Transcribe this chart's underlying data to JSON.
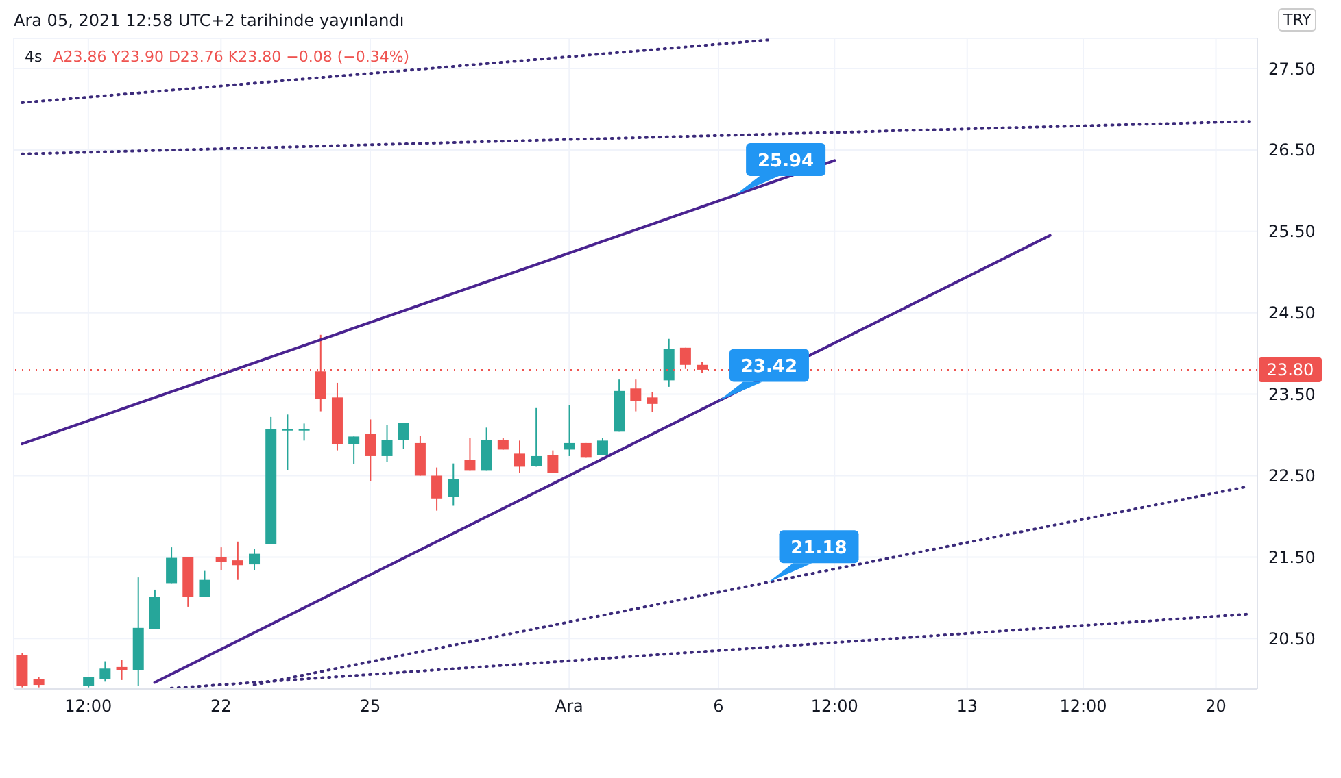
{
  "chart_data": {
    "type": "candlestick",
    "title": "Ara 05, 2021 12:58 UTC+2 tarihinde yayınlandı",
    "subtitle": "4s",
    "annotations": [
      "A23.86 Y23.90 D23.76 K23.80 −0.08 (−0.34%)",
      "TRY",
      "25.94",
      "23.42",
      "21.18"
    ],
    "categories": [
      null,
      null,
      null,
      null,
      "12:00",
      null,
      null,
      null,
      null,
      null,
      null,
      null,
      "22",
      null,
      null,
      null,
      null,
      null,
      null,
      null,
      null,
      "25",
      null,
      null,
      null,
      null,
      null,
      null,
      null,
      null,
      null,
      null,
      null,
      "Ara",
      null,
      null,
      null,
      null,
      null,
      null,
      null,
      null,
      "6",
      null,
      null,
      null,
      null,
      null,
      null,
      "12:00",
      null,
      null,
      null,
      null,
      null,
      null,
      null,
      "13",
      null,
      null,
      null,
      null,
      null,
      null,
      "12:00",
      null,
      null,
      null,
      null,
      null,
      null,
      null,
      "20",
      null,
      null
    ],
    "ohlc": [
      [
        20.3,
        20.32,
        19.9,
        19.92
      ],
      [
        20.0,
        20.03,
        19.9,
        19.93
      ],
      null,
      null,
      [
        19.92,
        20.03,
        19.9,
        20.03
      ],
      [
        20.0,
        20.22,
        19.97,
        20.13
      ],
      [
        20.15,
        20.24,
        19.99,
        20.11
      ],
      [
        20.11,
        21.25,
        19.92,
        20.63
      ],
      [
        20.62,
        21.1,
        20.62,
        21.01
      ],
      [
        21.18,
        21.62,
        21.18,
        21.49
      ],
      [
        21.5,
        21.5,
        20.89,
        21.01
      ],
      [
        21.01,
        21.33,
        21.01,
        21.22
      ],
      [
        21.5,
        21.62,
        21.34,
        21.44
      ],
      [
        21.46,
        21.69,
        21.22,
        21.4
      ],
      [
        21.41,
        21.6,
        21.34,
        21.54
      ],
      [
        21.66,
        23.22,
        21.66,
        23.07
      ],
      [
        23.06,
        23.25,
        22.57,
        23.07
      ],
      [
        23.06,
        23.14,
        22.93,
        23.07
      ],
      [
        23.78,
        24.23,
        23.29,
        23.44
      ],
      [
        23.46,
        23.64,
        22.81,
        22.89
      ],
      [
        22.89,
        22.98,
        22.64,
        22.98
      ],
      [
        23.01,
        23.19,
        22.43,
        22.74
      ],
      [
        22.74,
        23.12,
        22.67,
        22.94
      ],
      [
        22.94,
        23.15,
        22.83,
        23.15
      ],
      [
        22.9,
        22.99,
        22.5,
        22.5
      ],
      [
        22.5,
        22.6,
        22.07,
        22.22
      ],
      [
        22.24,
        22.65,
        22.13,
        22.46
      ],
      [
        22.69,
        22.96,
        22.56,
        22.56
      ],
      [
        22.56,
        23.09,
        22.56,
        22.94
      ],
      [
        22.94,
        22.96,
        22.82,
        22.82
      ],
      [
        22.77,
        22.93,
        22.53,
        22.61
      ],
      [
        22.62,
        23.33,
        22.61,
        22.74
      ],
      [
        22.75,
        22.81,
        22.53,
        22.53
      ],
      [
        22.82,
        23.37,
        22.74,
        22.9
      ],
      [
        22.9,
        22.9,
        22.72,
        22.72
      ],
      [
        22.75,
        22.96,
        22.75,
        22.93
      ],
      [
        23.04,
        23.68,
        23.04,
        23.54
      ],
      [
        23.57,
        23.68,
        23.29,
        23.42
      ],
      [
        23.46,
        23.53,
        23.28,
        23.38
      ],
      [
        23.67,
        24.18,
        23.59,
        24.06
      ],
      [
        24.07,
        24.07,
        23.81,
        23.86
      ],
      [
        23.86,
        23.9,
        23.76,
        23.8
      ],
      null,
      null,
      null,
      null,
      null,
      null,
      null,
      null,
      null,
      null,
      null,
      null,
      null,
      null,
      null,
      null,
      null,
      null,
      null,
      null,
      null,
      null,
      null,
      null,
      null,
      null,
      null,
      null,
      null,
      null,
      null,
      null,
      null
    ],
    "colors": [
      "#ef5350",
      "#ef5350",
      null,
      null,
      "#26a69a",
      "#26a69a",
      "#ef5350",
      "#26a69a",
      "#26a69a",
      "#26a69a",
      "#ef5350",
      "#26a69a",
      "#ef5350",
      "#ef5350",
      "#26a69a",
      "#26a69a",
      "#26a69a",
      "#26a69a",
      "#ef5350",
      "#ef5350",
      "#26a69a",
      "#ef5350",
      "#26a69a",
      "#26a69a",
      "#ef5350",
      "#ef5350",
      "#26a69a",
      "#ef5350",
      "#26a69a",
      "#ef5350",
      "#ef5350",
      "#26a69a",
      "#ef5350",
      "#26a69a",
      "#ef5350",
      "#26a69a",
      "#26a69a",
      "#ef5350",
      "#ef5350",
      "#26a69a",
      "#ef5350",
      "#ef5350",
      null,
      null,
      null,
      null,
      null,
      null,
      null,
      null,
      null,
      null,
      null,
      null,
      null,
      null,
      null,
      null,
      null,
      null,
      null,
      null,
      null,
      null,
      null,
      null,
      null,
      null,
      null,
      null,
      null,
      null,
      null,
      null,
      null
    ],
    "series": [
      {
        "type": "line",
        "color": "#4a2390",
        "line_style": "solid",
        "values": [
          22.89,
          null,
          null,
          null,
          null,
          null,
          null,
          null,
          null,
          null,
          null,
          null,
          null,
          null,
          null,
          null,
          null,
          null,
          null,
          null,
          null,
          null,
          null,
          null,
          null,
          null,
          null,
          null,
          null,
          null,
          null,
          null,
          null,
          null,
          null,
          null,
          null,
          null,
          null,
          null,
          null,
          null,
          null,
          null,
          null,
          null,
          null,
          null,
          null,
          26.37,
          null,
          null,
          null,
          null,
          null,
          null,
          null,
          null,
          null,
          null,
          null,
          null,
          null,
          null,
          null,
          null,
          null,
          null,
          null,
          null,
          null,
          null,
          null,
          null,
          null
        ]
      },
      {
        "type": "line",
        "color": "#4a2390",
        "line_style": "solid",
        "values": [
          null,
          null,
          null,
          null,
          null,
          null,
          null,
          null,
          19.96,
          null,
          null,
          null,
          null,
          null,
          null,
          null,
          null,
          null,
          null,
          null,
          null,
          null,
          null,
          null,
          null,
          null,
          null,
          null,
          null,
          null,
          null,
          null,
          null,
          null,
          null,
          null,
          null,
          null,
          null,
          null,
          null,
          null,
          null,
          null,
          null,
          null,
          null,
          null,
          null,
          null,
          null,
          null,
          null,
          null,
          null,
          null,
          null,
          null,
          null,
          null,
          null,
          null,
          25.45,
          null,
          null,
          null,
          null,
          null,
          null,
          null,
          null,
          null,
          null,
          null,
          null
        ]
      },
      {
        "type": "line",
        "color": "#3b2a7a",
        "line_style": "dotted",
        "values": [
          27.08,
          null,
          null,
          null,
          null,
          null,
          null,
          null,
          null,
          null,
          null,
          null,
          null,
          null,
          null,
          null,
          null,
          null,
          null,
          null,
          null,
          null,
          null,
          null,
          null,
          null,
          null,
          null,
          null,
          null,
          null,
          null,
          null,
          null,
          null,
          null,
          null,
          null,
          null,
          null,
          null,
          null,
          null,
          null,
          null,
          27.85,
          null,
          null,
          null,
          null,
          null,
          null,
          null,
          null,
          null,
          null,
          null,
          null,
          null,
          null,
          null,
          null,
          null,
          null,
          null,
          null,
          null,
          null,
          null,
          null,
          null,
          null,
          null,
          null,
          null
        ]
      },
      {
        "type": "line",
        "color": "#3b2a7a",
        "line_style": "dotted",
        "values": [
          26.45,
          null,
          null,
          null,
          null,
          null,
          null,
          null,
          null,
          null,
          null,
          null,
          null,
          null,
          null,
          null,
          null,
          null,
          null,
          null,
          null,
          null,
          null,
          null,
          null,
          null,
          null,
          null,
          null,
          null,
          null,
          null,
          null,
          null,
          null,
          null,
          null,
          null,
          null,
          null,
          null,
          null,
          null,
          null,
          null,
          null,
          null,
          null,
          null,
          null,
          null,
          null,
          null,
          null,
          null,
          null,
          null,
          null,
          null,
          null,
          null,
          null,
          null,
          null,
          null,
          null,
          null,
          null,
          null,
          null,
          null,
          null,
          null,
          null,
          26.85
        ]
      },
      {
        "type": "line",
        "color": "#3b2a7a",
        "line_style": "dotted",
        "values": [
          null,
          null,
          null,
          null,
          null,
          null,
          null,
          null,
          null,
          null,
          null,
          null,
          null,
          null,
          19.93,
          null,
          null,
          null,
          null,
          null,
          null,
          null,
          null,
          null,
          null,
          null,
          null,
          null,
          null,
          null,
          null,
          null,
          null,
          null,
          null,
          null,
          null,
          null,
          null,
          null,
          null,
          null,
          null,
          null,
          null,
          null,
          null,
          null,
          null,
          null,
          null,
          null,
          null,
          null,
          null,
          null,
          null,
          null,
          null,
          null,
          null,
          null,
          null,
          null,
          null,
          null,
          null,
          null,
          null,
          null,
          null,
          null,
          null,
          null,
          22.37
        ]
      },
      {
        "type": "line",
        "color": "#3b2a7a",
        "line_style": "dotted",
        "values": [
          null,
          null,
          null,
          null,
          null,
          null,
          null,
          null,
          null,
          19.89,
          null,
          null,
          null,
          null,
          null,
          null,
          null,
          null,
          null,
          null,
          null,
          null,
          null,
          null,
          null,
          null,
          null,
          null,
          null,
          null,
          null,
          null,
          null,
          null,
          null,
          null,
          null,
          null,
          null,
          null,
          null,
          null,
          null,
          null,
          null,
          null,
          null,
          null,
          null,
          null,
          null,
          null,
          null,
          null,
          null,
          null,
          null,
          null,
          null,
          null,
          null,
          null,
          null,
          null,
          null,
          null,
          null,
          null,
          null,
          null,
          null,
          null,
          null,
          null,
          20.8
        ]
      }
    ],
    "ref_lines": [
      {
        "axis": "y",
        "value": 23.8,
        "label": "23.80",
        "color": "#ef5350",
        "line_style": "dotted"
      }
    ],
    "ylim": [
      19.88,
      27.87
    ],
    "yticks": [
      {
        "value": 20.5,
        "label": "20.50"
      },
      {
        "value": 21.5,
        "label": "21.50"
      },
      {
        "value": 22.5,
        "label": "22.50"
      },
      {
        "value": 23.5,
        "label": "23.50"
      },
      {
        "value": 24.5,
        "label": "24.50"
      },
      {
        "value": 25.5,
        "label": "25.50"
      },
      {
        "value": 26.5,
        "label": "26.50"
      },
      {
        "value": 27.5,
        "label": "27.50"
      }
    ],
    "grid": true
  }
}
